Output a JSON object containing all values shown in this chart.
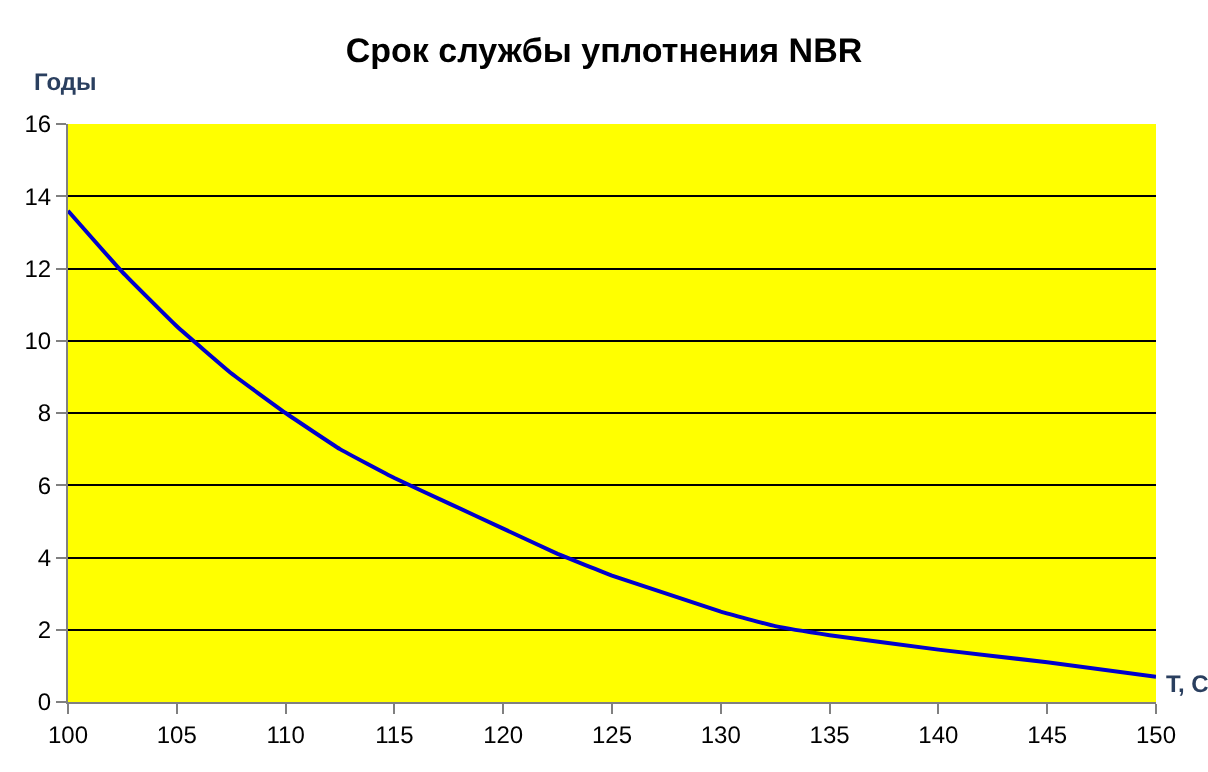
{
  "chart_data": {
    "type": "line",
    "title": "Срок службы уплотнения NBR",
    "xlabel": "T, C",
    "ylabel": "Годы",
    "x": [
      100,
      102.5,
      105,
      107.5,
      110,
      112.5,
      115,
      117.5,
      120,
      122.5,
      125,
      127.5,
      130,
      132.5,
      135,
      140,
      145,
      150
    ],
    "series": [
      {
        "color": "#0000cc",
        "values": [
          13.6,
          11.9,
          10.4,
          9.1,
          8.0,
          7.0,
          6.2,
          5.5,
          4.8,
          4.1,
          3.5,
          3.0,
          2.5,
          2.1,
          1.85,
          1.45,
          1.1,
          0.7
        ]
      }
    ],
    "xlim": [
      100,
      150
    ],
    "xticks": [
      100,
      105,
      110,
      115,
      120,
      125,
      130,
      135,
      140,
      145,
      150
    ],
    "ylim": [
      0,
      16
    ],
    "yticks": [
      0,
      2,
      4,
      6,
      8,
      10,
      12,
      14,
      16
    ],
    "grid": "y",
    "legend": false,
    "marker": "none",
    "line_style": "solid"
  }
}
